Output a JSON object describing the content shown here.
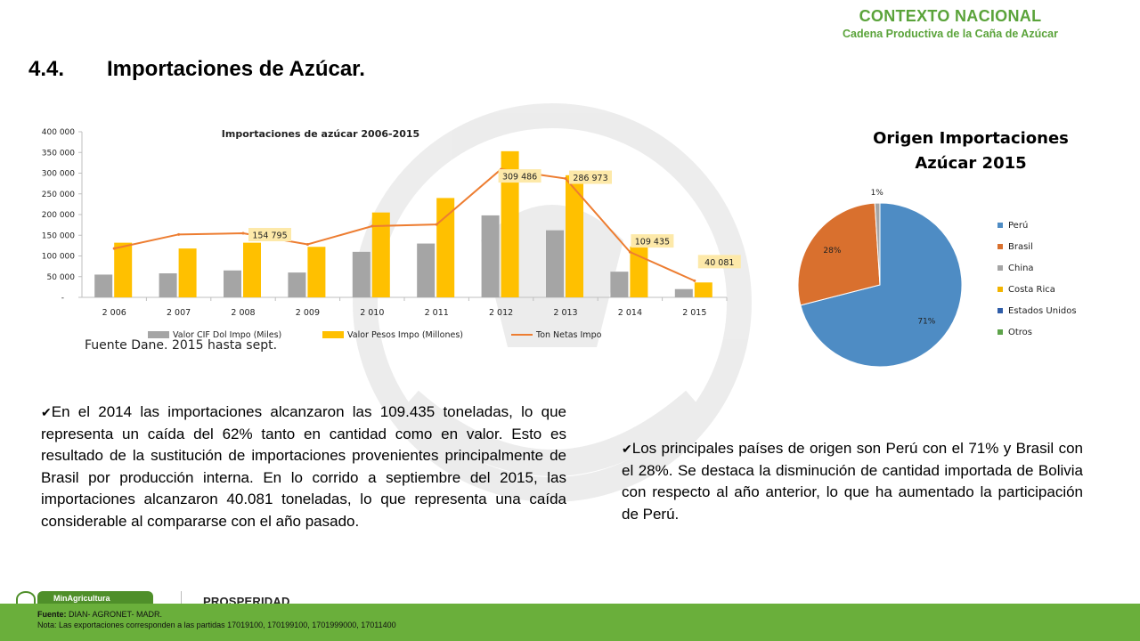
{
  "header": {
    "section": "CONTEXTO NACIONAL",
    "subtitle": "Cadena Productiva de la Caña de Azúcar"
  },
  "page": {
    "number": "4.4.",
    "title": "Importaciones de Azúcar."
  },
  "source_note": "Fuente Dane. 2015 hasta sept.",
  "paragraphs": {
    "left": "En el 2014  las importaciones alcanzaron las 109.435 toneladas, lo que representa un caída del 62% tanto en cantidad como en valor. Esto es resultado de la sustitución de importaciones provenientes principalmente de Brasil por producción interna. En lo corrido a septiembre del 2015, las importaciones alcanzaron 40.081 toneladas, lo que representa una caída considerable al compararse con el año pasado.",
    "right": "Los principales países de origen son Perú con el 71% y Brasil con el 28%. Se destaca la disminución de cantidad importada de Bolivia con respecto al año anterior, lo que ha aumentado la participación de Perú."
  },
  "footer": {
    "source_label": "Fuente:",
    "source_text": "DIAN- AGRONET- MADR.",
    "note": "Nota: Las exportaciones corresponden a las partidas 17019100, 170199100, 1701999000, 17011400",
    "logo_min": "MinAgricultura",
    "logo_prosperidad": "PROSPERIDAD"
  },
  "colors": {
    "brand_green": "#5aa33a",
    "footer_green": "#6aaf3b",
    "bar_gray": "#a5a5a5",
    "bar_gold": "#ffc000",
    "line_orange": "#ed7d31",
    "label_fill": "#fde9a9",
    "pie_blue": "#4e8cc4",
    "pie_orange": "#d9702e",
    "pie_gray": "#a5a5a5",
    "pie_gold": "#f2b400",
    "pie_navy": "#2f5da8",
    "pie_green": "#5da34a"
  },
  "chart_data": [
    {
      "type": "bar",
      "title": "Importaciones de azúcar 2006-2015",
      "categories": [
        "2 006",
        "2 007",
        "2 008",
        "2 009",
        "2 010",
        "2 011",
        "2 012",
        "2 013",
        "2 014",
        "2 015"
      ],
      "ylim": [
        0,
        400000
      ],
      "yticks": [
        "-",
        "50 000",
        "100 000",
        "150 000",
        "200 000",
        "250 000",
        "300 000",
        "350 000",
        "400 000"
      ],
      "series": [
        {
          "name": "Valor CIF Dol Impo (Miles)",
          "kind": "bar",
          "color": "#a5a5a5",
          "values": [
            55000,
            58000,
            65000,
            60000,
            110000,
            130000,
            198000,
            162000,
            62000,
            20000
          ]
        },
        {
          "name": "Valor  Pesos Impo (Millones)",
          "kind": "bar",
          "color": "#ffc000",
          "values": [
            132000,
            118000,
            132000,
            122000,
            205000,
            240000,
            353000,
            295000,
            123000,
            36000
          ]
        },
        {
          "name": "Ton Netas Impo",
          "kind": "line",
          "color": "#ed7d31",
          "values": [
            118000,
            152000,
            154795,
            128000,
            172000,
            176000,
            309486,
            286973,
            109435,
            40081
          ]
        }
      ],
      "data_labels": [
        {
          "index": 2,
          "text": "154 795"
        },
        {
          "index": 6,
          "text": "309 486"
        },
        {
          "index": 7,
          "text": "286 973"
        },
        {
          "index": 8,
          "text": "109 435"
        },
        {
          "index": 9,
          "text": "40 081"
        }
      ],
      "legend_position": "bottom",
      "grid": false
    },
    {
      "type": "pie",
      "title": "Origen Importaciones Azúcar 2015",
      "slices": [
        {
          "label": "Perú",
          "value": 71,
          "color": "#4e8cc4",
          "text": "71%"
        },
        {
          "label": "Brasil",
          "value": 28,
          "color": "#d9702e",
          "text": "28%"
        },
        {
          "label": "China",
          "value": 1,
          "color": "#a5a5a5",
          "text": "1%"
        },
        {
          "label": "Costa Rica",
          "value": 0,
          "color": "#f2b400",
          "text": ""
        },
        {
          "label": "Estados Unidos",
          "value": 0,
          "color": "#2f5da8",
          "text": ""
        },
        {
          "label": "Otros",
          "value": 0,
          "color": "#5da34a",
          "text": ""
        }
      ],
      "legend_position": "right"
    }
  ]
}
